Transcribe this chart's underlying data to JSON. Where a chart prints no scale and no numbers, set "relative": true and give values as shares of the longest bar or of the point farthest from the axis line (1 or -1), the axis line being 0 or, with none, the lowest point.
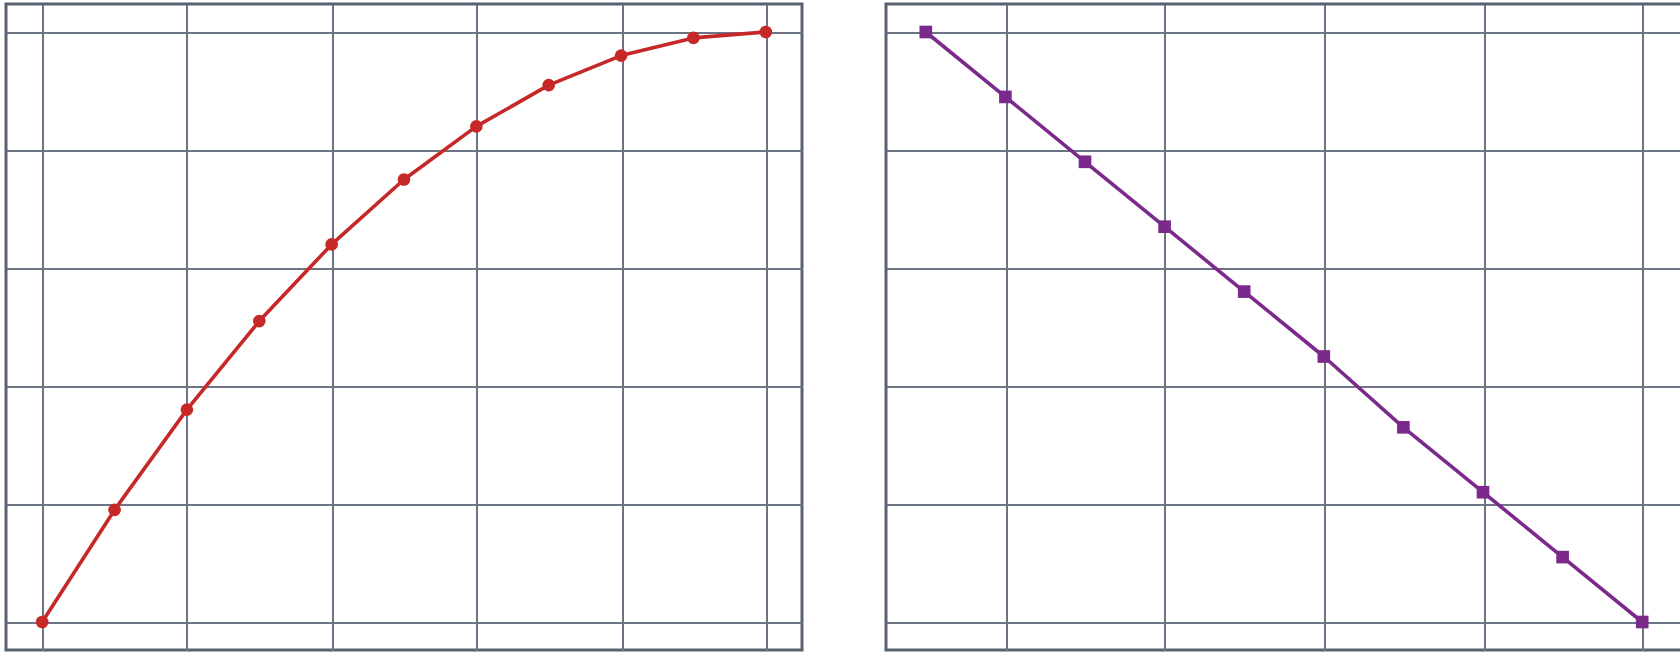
{
  "chart_data": [
    {
      "type": "line",
      "relative": true,
      "grid": true,
      "marker": "circle",
      "categories": [
        null,
        null,
        null,
        null,
        null,
        null,
        null,
        null,
        null,
        null,
        null
      ],
      "series": [
        {
          "color": "#c62828",
          "values": [
            0,
            0.19,
            0.36,
            0.51,
            0.64,
            0.75,
            0.84,
            0.91,
            0.96,
            0.99,
            1.0
          ]
        }
      ]
    },
    {
      "type": "line",
      "relative": true,
      "grid": true,
      "marker": "square",
      "categories": [
        null,
        null,
        null,
        null,
        null,
        null,
        null,
        null,
        null,
        null
      ],
      "series": [
        {
          "color": "#7b2a8c",
          "values": [
            1.0,
            0.89,
            0.78,
            0.67,
            0.56,
            0.45,
            0.33,
            0.22,
            0.11,
            0
          ]
        }
      ]
    }
  ]
}
